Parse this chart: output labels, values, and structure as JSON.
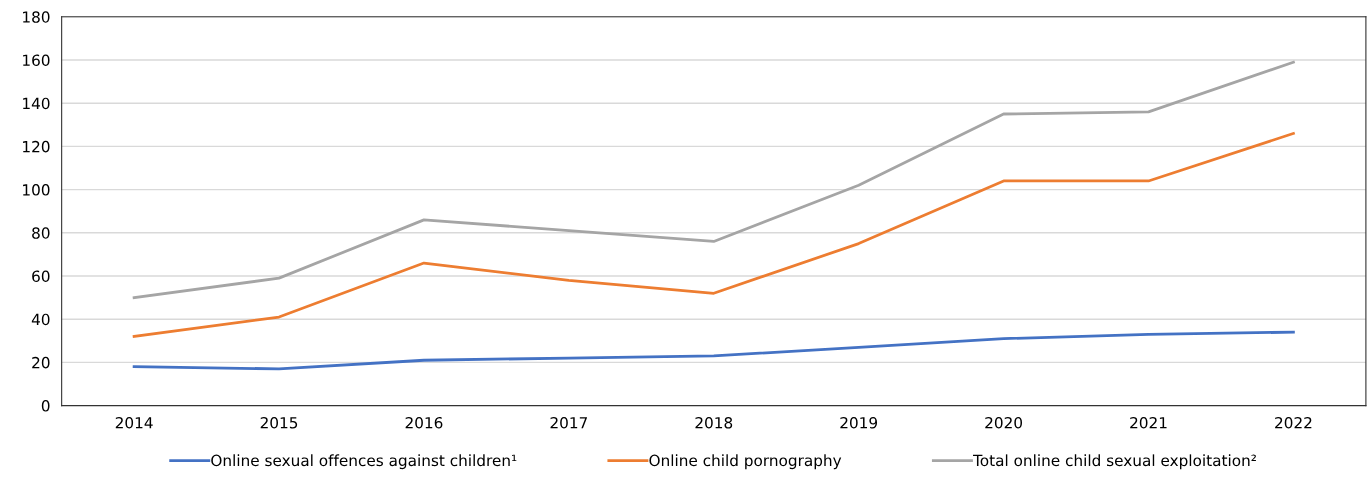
{
  "chart_data": {
    "type": "line",
    "categories": [
      "2014",
      "2015",
      "2016",
      "2017",
      "2018",
      "2019",
      "2020",
      "2021",
      "2022"
    ],
    "series": [
      {
        "name": "Online sexual offences against children¹",
        "color": "#4472c4",
        "values": [
          18,
          17,
          21,
          22,
          23,
          27,
          31,
          33,
          34
        ]
      },
      {
        "name": "Online child pornography",
        "color": "#ed7d31",
        "values": [
          32,
          41,
          66,
          58,
          52,
          75,
          104,
          104,
          126
        ]
      },
      {
        "name": "Total online child sexual exploitation²",
        "color": "#a5a5a5",
        "values": [
          50,
          59,
          86,
          81,
          76,
          102,
          135,
          136,
          159
        ]
      }
    ],
    "ylim": [
      0,
      180
    ],
    "yticks": [
      0,
      20,
      40,
      60,
      80,
      100,
      120,
      140,
      160,
      180
    ],
    "grid": "y",
    "legend": "bottom",
    "marker": "none",
    "line_style": "solid"
  }
}
